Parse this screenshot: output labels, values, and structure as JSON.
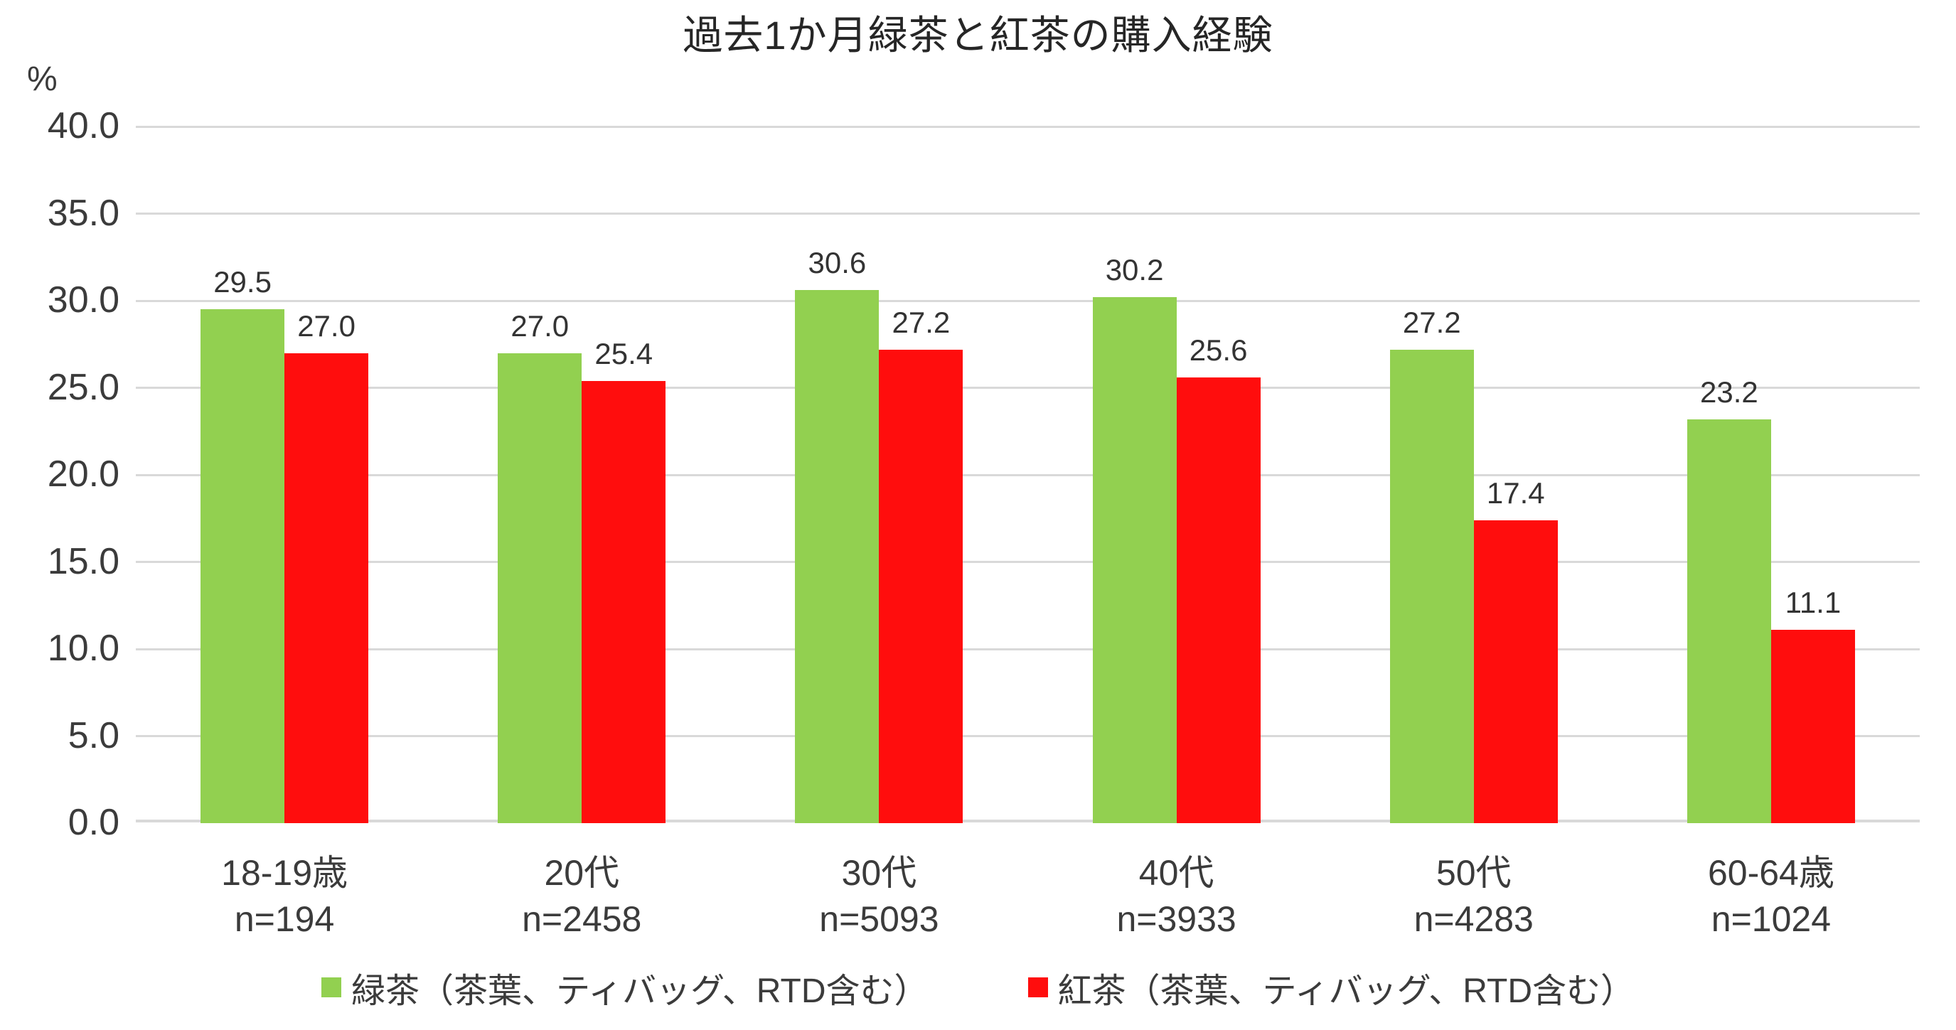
{
  "chart_data": {
    "type": "bar",
    "title": "過去1か月緑茶と紅茶の購入経験",
    "unit_label": "%",
    "categories": [
      {
        "label": "18-19歳",
        "n": "n=194"
      },
      {
        "label": "20代",
        "n": "n=2458"
      },
      {
        "label": "30代",
        "n": "n=5093"
      },
      {
        "label": "40代",
        "n": "n=3933"
      },
      {
        "label": "50代",
        "n": "n=4283"
      },
      {
        "label": "60-64歳",
        "n": "n=1024"
      }
    ],
    "series": [
      {
        "name": "緑茶（茶葉、ティバッグ、RTD含む）",
        "color": "#92D050",
        "values": [
          29.5,
          27.0,
          30.6,
          30.2,
          27.2,
          23.2
        ]
      },
      {
        "name": "紅茶（茶葉、ティバッグ、RTD含む）",
        "color": "#FF0D0D",
        "values": [
          27.0,
          25.4,
          27.2,
          25.6,
          17.4,
          11.1
        ]
      }
    ],
    "ylim": [
      0,
      40
    ],
    "y_tick_step": 5,
    "y_tick_decimals": 1,
    "value_label_decimals": 1,
    "grid": true,
    "legend_position": "bottom",
    "colors": {
      "gridline": "#D9D9D9",
      "axis_text": "#3B3B3B",
      "title_text": "#262626"
    }
  }
}
